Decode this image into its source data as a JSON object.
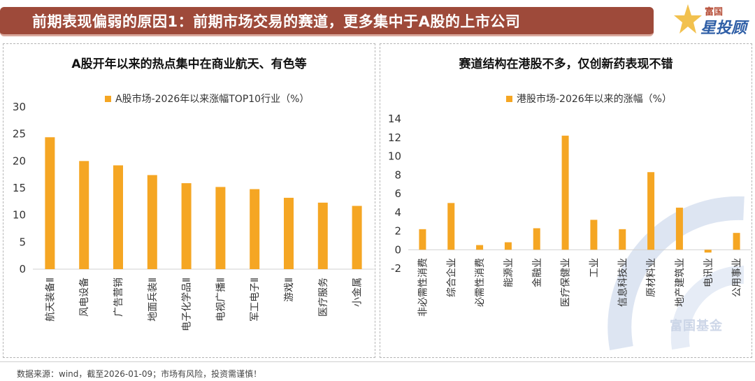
{
  "header": {
    "title": "前期表现偏弱的原因1：前期市场交易的赛道，更多集中于A股的上市公司"
  },
  "logo": {
    "small": "富国",
    "big": "星投顾"
  },
  "watermark": "富国基金",
  "footer": "数据来源：wind，截至2026-01-09；市场有风险，投资需谨慎！",
  "colors": {
    "bar": "#f5a623",
    "header_bg": "#9e4a3a"
  },
  "chart_data": [
    {
      "type": "bar",
      "title": "A股开年以来的热点集中在商业航天、有色等",
      "legend": "A股市场-2026年以来涨幅TOP10行业（%）",
      "categories": [
        "航天装备Ⅱ",
        "风电设备",
        "广告营销",
        "地面兵装Ⅱ",
        "电子化学品Ⅱ",
        "电视广播Ⅱ",
        "军工电子Ⅱ",
        "游戏Ⅱ",
        "医疗服务",
        "小金属"
      ],
      "values": [
        24.4,
        20.0,
        19.2,
        17.4,
        15.9,
        15.2,
        14.8,
        13.2,
        12.3,
        11.7
      ],
      "yticks": [
        "0",
        "5",
        "10",
        "15",
        "20",
        "25",
        "30"
      ],
      "ylim": [
        0,
        30
      ]
    },
    {
      "type": "bar",
      "title": "赛道结构在港股不多，仅创新药表现不错",
      "legend": "港股市场-2026年以来的涨幅（%）",
      "categories": [
        "非必需性消费",
        "综合企业",
        "必需性消费",
        "能源业",
        "金融业",
        "医疗保健业",
        "工业",
        "信息科技业",
        "原材料业",
        "地产建筑业",
        "电讯业",
        "公用事业"
      ],
      "values": [
        2.2,
        5.0,
        0.5,
        0.8,
        2.3,
        12.2,
        3.2,
        2.2,
        8.3,
        4.5,
        -0.3,
        1.8
      ],
      "yticks": [
        "-2",
        "0",
        "2",
        "4",
        "6",
        "8",
        "10",
        "12",
        "14"
      ],
      "ylim": [
        -2,
        14
      ]
    }
  ]
}
